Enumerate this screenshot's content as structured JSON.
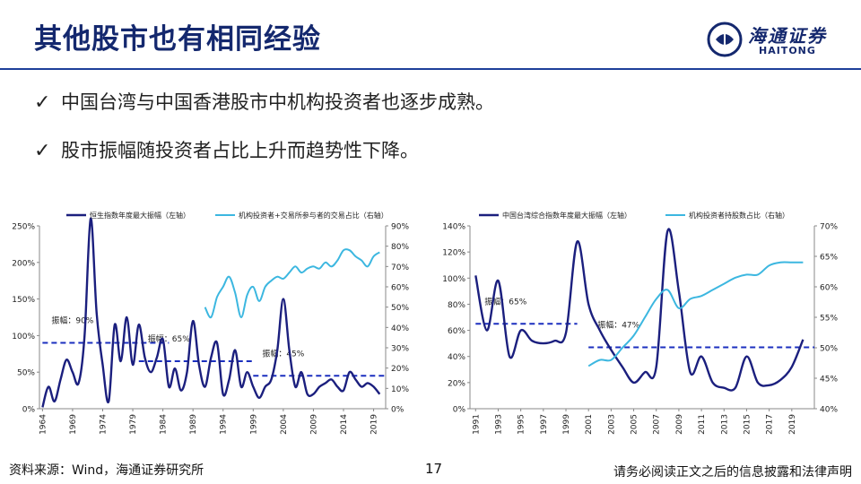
{
  "header": {
    "title": "其他股市也有相同经验"
  },
  "logo": {
    "cn": "海通证券",
    "en": "HAITONG",
    "brand_color": "#14286e"
  },
  "bullets": [
    "中国台湾与中国香港股市中机构投资者也逐步成熟。",
    "股市振幅随投资者占比上升而趋势性下降。"
  ],
  "footer": {
    "source": "资料来源：Wind，海通证券研究所",
    "page": "17",
    "disclaimer": "请务必阅读正文之后的信息披露和法律声明"
  },
  "colors": {
    "dark_series": "#1b1f7e",
    "light_series": "#3cb7e0",
    "dashed": "#1b2fbf"
  },
  "chart_data": [
    {
      "type": "line",
      "series": [
        {
          "name": "恒生指数年度最大振幅（左轴）",
          "axis": "left",
          "x": [
            1964,
            1965,
            1966,
            1967,
            1968,
            1969,
            1970,
            1971,
            1972,
            1973,
            1974,
            1975,
            1976,
            1977,
            1978,
            1979,
            1980,
            1981,
            1982,
            1983,
            1984,
            1985,
            1986,
            1987,
            1988,
            1989,
            1990,
            1991,
            1992,
            1993,
            1994,
            1995,
            1996,
            1997,
            1998,
            1999,
            2000,
            2001,
            2002,
            2003,
            2004,
            2005,
            2006,
            2007,
            2008,
            2009,
            2010,
            2011,
            2012,
            2013,
            2014,
            2015,
            2016,
            2017,
            2018,
            2019,
            2020
          ],
          "values": [
            0.02,
            0.3,
            0.1,
            0.4,
            0.67,
            0.5,
            0.35,
            1.0,
            2.6,
            1.3,
            0.6,
            0.1,
            1.15,
            0.65,
            1.25,
            0.6,
            1.15,
            0.7,
            0.5,
            0.7,
            0.95,
            0.3,
            0.55,
            0.25,
            0.5,
            1.2,
            0.6,
            0.3,
            0.7,
            0.9,
            0.2,
            0.4,
            0.8,
            0.3,
            0.5,
            0.3,
            0.15,
            0.3,
            0.4,
            0.8,
            1.5,
            0.8,
            0.3,
            0.5,
            0.2,
            0.2,
            0.3,
            0.35,
            0.4,
            0.3,
            0.25,
            0.5,
            0.4,
            0.3,
            0.35,
            0.3,
            0.2
          ]
        },
        {
          "name": "机构投资者+交易所参与者的交易占比（右轴）",
          "axis": "right",
          "x": [
            1991,
            1992,
            1993,
            1994,
            1995,
            1996,
            1997,
            1998,
            1999,
            2000,
            2001,
            2002,
            2003,
            2004,
            2005,
            2006,
            2007,
            2008,
            2009,
            2010,
            2011,
            2012,
            2013,
            2014,
            2015,
            2016,
            2017,
            2018,
            2019,
            2020
          ],
          "values": [
            0.5,
            0.45,
            0.55,
            0.6,
            0.65,
            0.57,
            0.45,
            0.56,
            0.6,
            0.53,
            0.6,
            0.63,
            0.65,
            0.64,
            0.67,
            0.7,
            0.67,
            0.69,
            0.7,
            0.69,
            0.72,
            0.7,
            0.73,
            0.78,
            0.78,
            0.75,
            0.73,
            0.7,
            0.75,
            0.77
          ]
        }
      ],
      "xticks": [
        1964,
        1969,
        1974,
        1979,
        1984,
        1989,
        1994,
        1999,
        2004,
        2009,
        2014,
        2019
      ],
      "yleft": {
        "lim": [
          0,
          2.5
        ],
        "ticks": [
          "0%",
          "50%",
          "100%",
          "150%",
          "200%",
          "250%"
        ]
      },
      "yright": {
        "lim": [
          0,
          0.9
        ],
        "ticks": [
          "0%",
          "10%",
          "20%",
          "30%",
          "40%",
          "50%",
          "60%",
          "70%",
          "80%",
          "90%"
        ]
      },
      "reference_lines": [
        {
          "label": "振幅：90%",
          "value": 0.9,
          "x_range": [
            1964,
            1985
          ]
        },
        {
          "label": "振幅：65%",
          "value": 0.65,
          "x_range": [
            1980,
            1999
          ]
        },
        {
          "label": "振幅：45%",
          "value": 0.45,
          "x_range": [
            1999,
            2021
          ]
        }
      ]
    },
    {
      "type": "line",
      "series": [
        {
          "name": "中国台湾综合指数年度最大振幅（左轴）",
          "axis": "left",
          "x": [
            1991,
            1992,
            1993,
            1994,
            1995,
            1996,
            1997,
            1998,
            1999,
            2000,
            2001,
            2002,
            2003,
            2004,
            2005,
            2006,
            2007,
            2008,
            2009,
            2010,
            2011,
            2012,
            2013,
            2014,
            2015,
            2016,
            2017,
            2018,
            2019,
            2020
          ],
          "values": [
            1.02,
            0.6,
            0.98,
            0.4,
            0.6,
            0.52,
            0.5,
            0.52,
            0.58,
            1.28,
            0.8,
            0.6,
            0.45,
            0.32,
            0.2,
            0.28,
            0.32,
            1.36,
            0.9,
            0.28,
            0.4,
            0.2,
            0.16,
            0.16,
            0.4,
            0.2,
            0.18,
            0.22,
            0.32,
            0.53
          ]
        },
        {
          "name": "机构投资者持股数占比（右轴）",
          "axis": "right",
          "x": [
            2001,
            2002,
            2003,
            2004,
            2005,
            2006,
            2007,
            2008,
            2009,
            2010,
            2011,
            2012,
            2013,
            2014,
            2015,
            2016,
            2017,
            2018,
            2019,
            2020
          ],
          "values": [
            0.47,
            0.48,
            0.48,
            0.5,
            0.52,
            0.55,
            0.58,
            0.595,
            0.565,
            0.58,
            0.585,
            0.595,
            0.605,
            0.615,
            0.62,
            0.62,
            0.635,
            0.64,
            0.64,
            0.64
          ]
        }
      ],
      "xticks": [
        1991,
        1993,
        1995,
        1997,
        1999,
        2001,
        2003,
        2005,
        2007,
        2009,
        2011,
        2013,
        2015,
        2017,
        2019
      ],
      "yleft": {
        "lim": [
          0,
          1.4
        ],
        "ticks": [
          "0%",
          "20%",
          "40%",
          "60%",
          "80%",
          "100%",
          "120%",
          "140%"
        ]
      },
      "yright": {
        "lim": [
          0.4,
          0.7
        ],
        "ticks": [
          "40%",
          "45%",
          "50%",
          "55%",
          "60%",
          "65%",
          "70%"
        ]
      },
      "reference_lines": [
        {
          "label": "振幅：65%",
          "value": 0.65,
          "x_range": [
            1991,
            2000
          ]
        },
        {
          "label": "振幅：47%",
          "value": 0.47,
          "x_range": [
            2001,
            2021
          ]
        }
      ]
    }
  ]
}
